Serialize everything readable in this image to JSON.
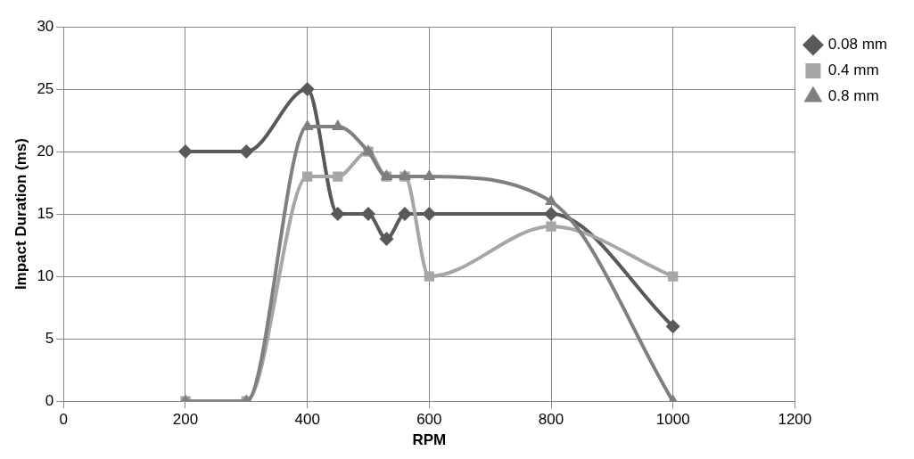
{
  "chart_data": {
    "type": "line",
    "xlabel": "RPM",
    "ylabel": "Impact Duration (ms)",
    "xlim": [
      0,
      1200
    ],
    "xticks": [
      0,
      200,
      400,
      600,
      800,
      1000,
      1200
    ],
    "ylim": [
      0,
      30
    ],
    "yticks": [
      0,
      5,
      10,
      15,
      20,
      25,
      30
    ],
    "grid": true,
    "legend": "right",
    "series": [
      {
        "name": "0.08 mm",
        "color": "#595959",
        "marker": "diamond",
        "x": [
          200,
          300,
          400,
          450,
          500,
          530,
          560,
          600,
          800,
          1000
        ],
        "values": [
          20,
          20,
          25,
          15,
          15,
          13,
          15,
          15,
          15,
          6
        ]
      },
      {
        "name": "0.4 mm",
        "color": "#a6a6a6",
        "marker": "square",
        "x": [
          200,
          300,
          400,
          450,
          500,
          530,
          560,
          600,
          800,
          1000
        ],
        "values": [
          0,
          0,
          18,
          18,
          20,
          18,
          18,
          10,
          14,
          10
        ]
      },
      {
        "name": "0.8 mm",
        "color": "#7f7f7f",
        "marker": "triangle",
        "x": [
          200,
          300,
          400,
          450,
          500,
          530,
          560,
          600,
          800,
          1000
        ],
        "values": [
          0,
          0,
          22,
          22,
          20,
          18,
          18,
          18,
          16,
          0
        ]
      }
    ]
  }
}
